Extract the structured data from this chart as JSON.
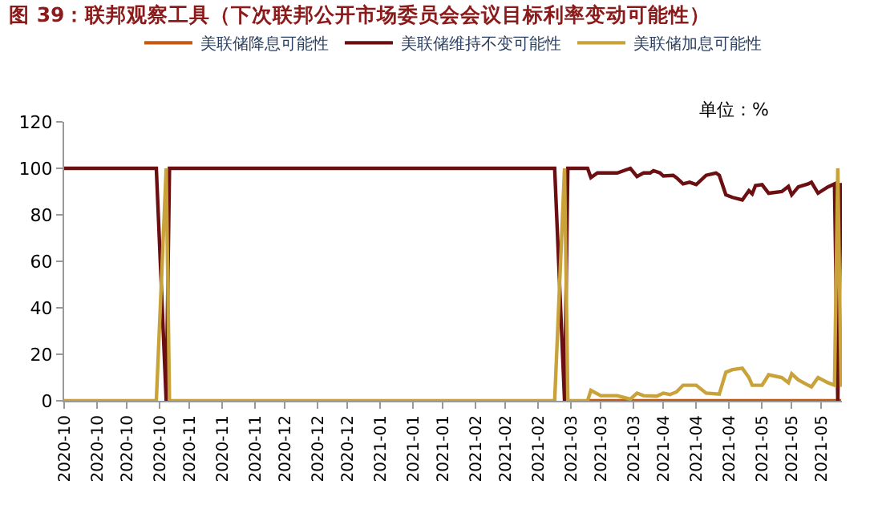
{
  "chart_data": {
    "type": "line",
    "title": "图 39：联邦观察工具（下次联邦公开市场委员会会议目标利率变动可能性）",
    "annotations": [
      "单位：%"
    ],
    "xlim": [
      "2020-10-01",
      "2021-05-25T06:00"
    ],
    "xticks": [
      {
        "value": "2020-10-01",
        "label": "2020-10"
      },
      {
        "value": "2020-10-11",
        "label": "2020-10"
      },
      {
        "value": "2020-10-20",
        "label": "2020-10"
      },
      {
        "value": "2020-10-30",
        "label": "2020-10"
      },
      {
        "value": "2020-11-08",
        "label": "2020-11"
      },
      {
        "value": "2020-11-18",
        "label": "2020-11"
      },
      {
        "value": "2020-11-28",
        "label": "2020-11"
      },
      {
        "value": "2020-12-07",
        "label": "2020-12"
      },
      {
        "value": "2020-12-17",
        "label": "2020-12"
      },
      {
        "value": "2020-12-26",
        "label": "2020-12"
      },
      {
        "value": "2021-01-05",
        "label": "2021-01"
      },
      {
        "value": "2021-01-15",
        "label": "2021-01"
      },
      {
        "value": "2021-01-24",
        "label": "2021-01"
      },
      {
        "value": "2021-02-03",
        "label": "2021-02"
      },
      {
        "value": "2021-02-12",
        "label": "2021-02"
      },
      {
        "value": "2021-02-22",
        "label": "2021-02"
      },
      {
        "value": "2021-03-04",
        "label": "2021-03"
      },
      {
        "value": "2021-03-13",
        "label": "2021-03"
      },
      {
        "value": "2021-03-23",
        "label": "2021-03"
      },
      {
        "value": "2021-04-01",
        "label": "2021-04"
      },
      {
        "value": "2021-04-11",
        "label": "2021-04"
      },
      {
        "value": "2021-04-21",
        "label": "2021-04"
      },
      {
        "value": "2021-05-01",
        "label": "2021-05"
      },
      {
        "value": "2021-05-10",
        "label": "2021-05"
      },
      {
        "value": "2021-05-19",
        "label": "2021-05"
      }
    ],
    "ylim": [
      0,
      120
    ],
    "yticks": [
      0,
      20,
      40,
      60,
      80,
      100,
      120
    ],
    "legend": "top",
    "series": [
      {
        "name": "美联储降息可能性",
        "color": "#c55a11",
        "x": [
          "2021-03-09",
          "2021-05-25"
        ],
        "values": [
          0,
          0
        ]
      },
      {
        "name": "美联储维持不变可能性",
        "color": "#6b0f12",
        "x": [
          "2020-10-01",
          "2020-10-29",
          "2020-11-01",
          "2020-11-02",
          "2021-02-27",
          "2021-03-02",
          "2021-03-03",
          "2021-03-09",
          "2021-03-10",
          "2021-03-12",
          "2021-03-18",
          "2021-03-22",
          "2021-03-24",
          "2021-03-26",
          "2021-03-28",
          "2021-03-29",
          "2021-03-31",
          "2021-04-01",
          "2021-04-04",
          "2021-04-05",
          "2021-04-07",
          "2021-04-09",
          "2021-04-11",
          "2021-04-14",
          "2021-04-17",
          "2021-04-18",
          "2021-04-20",
          "2021-04-22",
          "2021-04-25",
          "2021-04-27",
          "2021-04-28",
          "2021-04-29",
          "2021-05-01",
          "2021-05-03",
          "2021-05-07",
          "2021-05-09",
          "2021-05-10",
          "2021-05-12",
          "2021-05-15",
          "2021-05-16",
          "2021-05-18",
          "2021-05-21",
          "2021-05-23",
          "2021-05-24",
          "2021-05-25"
        ],
        "values": [
          100,
          100,
          0,
          100,
          100,
          0,
          100,
          100,
          96,
          98,
          98,
          100,
          96.5,
          98,
          98,
          99,
          98,
          96.7,
          97,
          96,
          93.3,
          94,
          93,
          97,
          98,
          97,
          88.6,
          87.5,
          86.4,
          90.4,
          89,
          92.6,
          93,
          89.3,
          90,
          92.2,
          88.6,
          92,
          93.3,
          94,
          89.3,
          92,
          93.3,
          0,
          93.7
        ]
      },
      {
        "name": "美联储加息可能性",
        "color": "#c9a23a",
        "x": [
          "2020-10-01",
          "2020-10-29",
          "2020-11-01",
          "2020-11-02",
          "2021-02-27",
          "2021-03-02",
          "2021-03-03",
          "2021-03-09",
          "2021-03-10",
          "2021-03-13",
          "2021-03-18",
          "2021-03-22",
          "2021-03-24",
          "2021-03-26",
          "2021-03-30",
          "2021-04-01",
          "2021-04-03",
          "2021-04-05",
          "2021-04-07",
          "2021-04-11",
          "2021-04-14",
          "2021-04-18",
          "2021-04-20",
          "2021-04-22",
          "2021-04-25",
          "2021-04-27",
          "2021-04-28",
          "2021-05-01",
          "2021-05-03",
          "2021-05-07",
          "2021-05-09",
          "2021-05-10",
          "2021-05-12",
          "2021-05-15",
          "2021-05-16",
          "2021-05-18",
          "2021-05-21",
          "2021-05-23",
          "2021-05-24",
          "2021-05-25"
        ],
        "values": [
          0,
          0,
          100,
          0,
          0,
          100,
          0,
          0,
          4.5,
          2.2,
          2.2,
          0.7,
          3.3,
          2.2,
          2,
          3.3,
          2.7,
          3.8,
          6.7,
          6.7,
          3.3,
          2.9,
          12.3,
          13.4,
          14,
          10,
          6.7,
          6.7,
          11.2,
          10,
          7.8,
          11.6,
          9,
          6.7,
          6,
          10,
          7.8,
          6.7,
          100,
          6
        ]
      }
    ]
  }
}
